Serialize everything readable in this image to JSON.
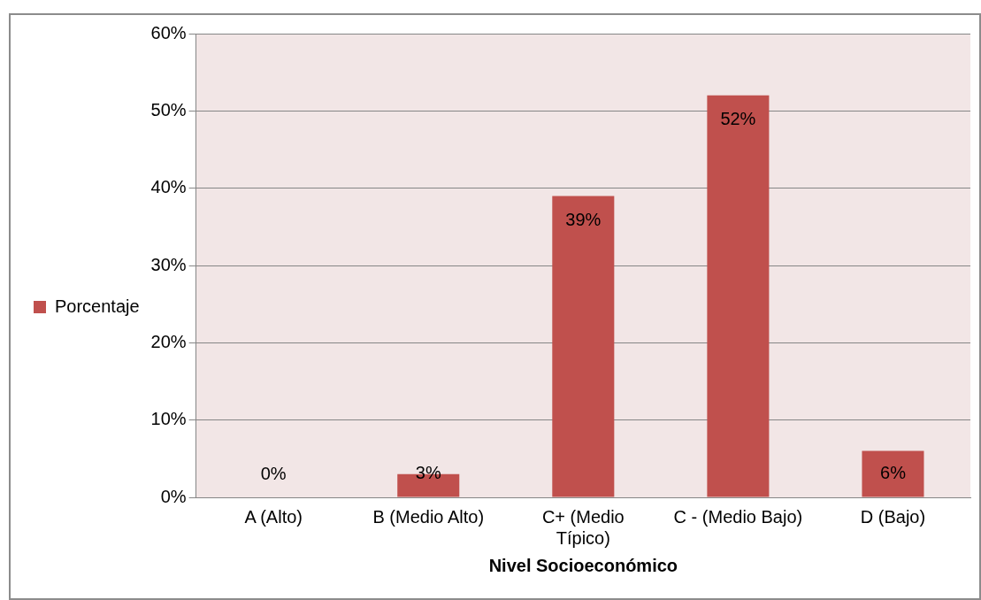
{
  "chart_data": {
    "type": "bar",
    "xlabel": "Nivel Socioeconómico",
    "categories": [
      "A (Alto)",
      "B (Medio Alto)",
      "C+ (Medio Típico)",
      "C - (Medio Bajo)",
      "D (Bajo)"
    ],
    "series": [
      {
        "name": "Porcentaje",
        "color": "#c0504d",
        "values": [
          0,
          3,
          39,
          52,
          6
        ],
        "value_labels": [
          "0%",
          "3%",
          "39%",
          "52%",
          "6%"
        ]
      }
    ],
    "ylim": [
      0,
      60
    ],
    "yticks": [
      {
        "value": 0,
        "label": "0%"
      },
      {
        "value": 10,
        "label": "10%"
      },
      {
        "value": 20,
        "label": "20%"
      },
      {
        "value": 30,
        "label": "30%"
      },
      {
        "value": 40,
        "label": "40%"
      },
      {
        "value": 50,
        "label": "50%"
      },
      {
        "value": 60,
        "label": "60%"
      }
    ],
    "grid": "y",
    "legend": "left"
  }
}
